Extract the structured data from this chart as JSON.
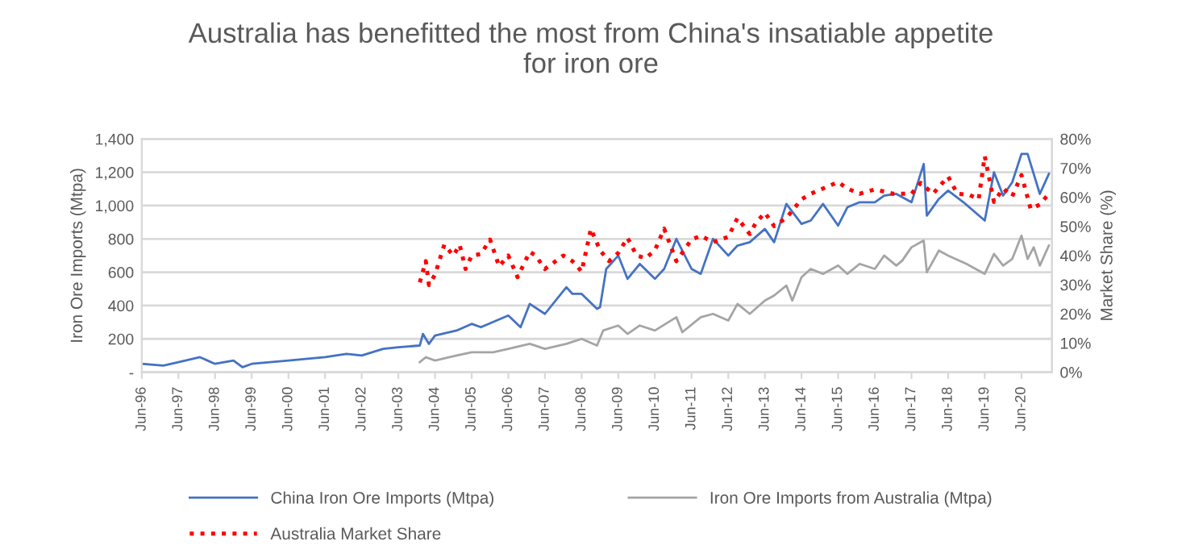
{
  "chart_data": {
    "type": "line",
    "title": "Australia has benefitted the most from China's insatiable appetite\nfor iron ore",
    "ylabel": "Iron Ore Imports (Mtpa)",
    "y2label": "Market Share (%)",
    "xlim": [
      "1996-06",
      "2021-04"
    ],
    "xticks": [
      {
        "value": "1996-06",
        "label": "Jun-96"
      },
      {
        "value": "1997-06",
        "label": "Jun-97"
      },
      {
        "value": "1998-06",
        "label": "Jun-98"
      },
      {
        "value": "1999-06",
        "label": "Jun-99"
      },
      {
        "value": "2000-06",
        "label": "Jun-00"
      },
      {
        "value": "2001-06",
        "label": "Jun-01"
      },
      {
        "value": "2002-06",
        "label": "Jun-02"
      },
      {
        "value": "2003-06",
        "label": "Jun-03"
      },
      {
        "value": "2004-06",
        "label": "Jun-04"
      },
      {
        "value": "2005-06",
        "label": "Jun-05"
      },
      {
        "value": "2006-06",
        "label": "Jun-06"
      },
      {
        "value": "2007-06",
        "label": "Jun-07"
      },
      {
        "value": "2008-06",
        "label": "Jun-08"
      },
      {
        "value": "2009-06",
        "label": "Jun-09"
      },
      {
        "value": "2010-06",
        "label": "Jun-10"
      },
      {
        "value": "2011-06",
        "label": "Jun-11"
      },
      {
        "value": "2012-06",
        "label": "Jun-12"
      },
      {
        "value": "2013-06",
        "label": "Jun-13"
      },
      {
        "value": "2014-06",
        "label": "Jun-14"
      },
      {
        "value": "2015-06",
        "label": "Jun-15"
      },
      {
        "value": "2016-06",
        "label": "Jun-16"
      },
      {
        "value": "2017-06",
        "label": "Jun-17"
      },
      {
        "value": "2018-06",
        "label": "Jun-18"
      },
      {
        "value": "2019-06",
        "label": "Jun-19"
      },
      {
        "value": "2020-06",
        "label": "Jun-20"
      }
    ],
    "ylim": [
      0,
      1400
    ],
    "yticks": [
      {
        "value": 0,
        "label": "-"
      },
      200,
      400,
      600,
      800,
      {
        "value": 1000,
        "label": "1,000"
      },
      {
        "value": 1200,
        "label": "1,200"
      },
      {
        "value": 1400,
        "label": "1,400"
      }
    ],
    "y2lim": [
      0,
      80
    ],
    "y2ticks": [
      {
        "value": 0,
        "label": "0%"
      },
      {
        "value": 10,
        "label": "10%"
      },
      {
        "value": 20,
        "label": "20%"
      },
      {
        "value": 30,
        "label": "30%"
      },
      {
        "value": 40,
        "label": "40%"
      },
      {
        "value": 50,
        "label": "50%"
      },
      {
        "value": 60,
        "label": "60%"
      },
      {
        "value": 70,
        "label": "70%"
      },
      {
        "value": 80,
        "label": "80%"
      }
    ],
    "grid": "y",
    "legend": "bottom",
    "series": [
      {
        "name": "China Iron Ore Imports (Mtpa)",
        "color": "#4472c4",
        "line_style": "solid",
        "x": [
          "1996-06",
          "1997-01",
          "1997-06",
          "1998-01",
          "1998-06",
          "1998-12",
          "1999-03",
          "1999-06",
          "2000-06",
          "2001-06",
          "2002-01",
          "2002-06",
          "2003-01",
          "2003-06",
          "2004-01",
          "2004-02",
          "2004-04",
          "2004-06",
          "2005-01",
          "2005-06",
          "2005-09",
          "2006-06",
          "2006-10",
          "2007-01",
          "2007-06",
          "2008-01",
          "2008-03",
          "2008-06",
          "2008-11",
          "2008-12",
          "2009-02",
          "2009-06",
          "2009-09",
          "2010-01",
          "2010-06",
          "2010-09",
          "2011-01",
          "2011-06",
          "2011-09",
          "2012-01",
          "2012-06",
          "2012-09",
          "2013-01",
          "2013-06",
          "2013-09",
          "2014-01",
          "2014-06",
          "2014-09",
          "2015-01",
          "2015-06",
          "2015-09",
          "2016-01",
          "2016-06",
          "2016-09",
          "2017-01",
          "2017-06",
          "2017-10",
          "2017-11",
          "2018-03",
          "2018-06",
          "2018-11",
          "2019-06",
          "2019-09",
          "2019-12",
          "2020-03",
          "2020-06",
          "2020-08",
          "2020-12",
          "2021-03"
        ],
        "values": [
          50,
          40,
          60,
          90,
          50,
          70,
          30,
          50,
          70,
          90,
          110,
          100,
          140,
          150,
          160,
          230,
          170,
          220,
          250,
          290,
          270,
          340,
          270,
          410,
          350,
          510,
          470,
          470,
          380,
          390,
          620,
          700,
          560,
          650,
          560,
          620,
          800,
          620,
          590,
          800,
          700,
          760,
          780,
          860,
          780,
          1010,
          890,
          910,
          1010,
          880,
          990,
          1020,
          1020,
          1060,
          1070,
          1020,
          1250,
          940,
          1040,
          1090,
          1020,
          910,
          1200,
          1060,
          1140,
          1310,
          1310,
          1070,
          1190
        ]
      },
      {
        "name": "Iron Ore Imports from Australia (Mtpa)",
        "color": "#a5a5a5",
        "line_style": "solid",
        "x": [
          "2004-01",
          "2004-03",
          "2004-06",
          "2005-01",
          "2005-06",
          "2006-01",
          "2006-06",
          "2007-01",
          "2007-06",
          "2008-01",
          "2008-06",
          "2008-11",
          "2009-01",
          "2009-06",
          "2009-09",
          "2010-01",
          "2010-06",
          "2011-01",
          "2011-03",
          "2011-09",
          "2012-01",
          "2012-06",
          "2012-09",
          "2013-01",
          "2013-06",
          "2013-09",
          "2014-01",
          "2014-03",
          "2014-06",
          "2014-09",
          "2015-01",
          "2015-06",
          "2015-09",
          "2016-01",
          "2016-06",
          "2016-09",
          "2017-01",
          "2017-03",
          "2017-06",
          "2017-10",
          "2017-11",
          "2018-03",
          "2018-06",
          "2018-12",
          "2019-06",
          "2019-09",
          "2019-12",
          "2020-03",
          "2020-06",
          "2020-08",
          "2020-10",
          "2020-12",
          "2021-03"
        ],
        "values": [
          60,
          90,
          70,
          100,
          120,
          120,
          140,
          170,
          140,
          170,
          200,
          160,
          250,
          280,
          230,
          280,
          250,
          330,
          240,
          330,
          350,
          310,
          410,
          350,
          430,
          460,
          520,
          430,
          570,
          620,
          590,
          640,
          590,
          650,
          620,
          700,
          640,
          670,
          750,
          790,
          600,
          730,
          700,
          650,
          590,
          710,
          640,
          680,
          820,
          680,
          750,
          640,
          760
        ]
      },
      {
        "name": "Australia Market Share",
        "color": "#ff0000",
        "line_style": "dotted",
        "axis": "y2",
        "x": [
          "2004-01",
          "2004-03",
          "2004-04",
          "2004-06",
          "2004-09",
          "2004-12",
          "2005-02",
          "2005-04",
          "2005-06",
          "2005-09",
          "2005-12",
          "2006-03",
          "2006-06",
          "2006-09",
          "2007-01",
          "2007-03",
          "2007-06",
          "2007-12",
          "2008-03",
          "2008-06",
          "2008-09",
          "2008-12",
          "2009-03",
          "2009-06",
          "2009-09",
          "2009-12",
          "2010-03",
          "2010-06",
          "2010-09",
          "2011-01",
          "2011-06",
          "2011-09",
          "2012-01",
          "2012-06",
          "2012-09",
          "2013-01",
          "2013-03",
          "2013-06",
          "2013-09",
          "2014-01",
          "2014-06",
          "2014-09",
          "2015-01",
          "2015-06",
          "2015-09",
          "2016-01",
          "2016-06",
          "2016-12",
          "2017-06",
          "2017-09",
          "2018-01",
          "2018-06",
          "2018-09",
          "2019-01",
          "2019-04",
          "2019-06",
          "2019-09",
          "2019-12",
          "2020-03",
          "2020-06",
          "2020-09",
          "2020-12",
          "2021-03"
        ],
        "values": [
          30.8,
          38.1,
          29.9,
          33.5,
          43.7,
          40.0,
          43.7,
          35.4,
          40.0,
          40.5,
          45.5,
          36.3,
          40.0,
          32.6,
          41.3,
          40.0,
          35.4,
          40.0,
          38.1,
          34.5,
          49.2,
          41.8,
          38.1,
          40.9,
          46.1,
          40.0,
          39.1,
          41.8,
          49.2,
          38.1,
          45.5,
          46.8,
          44.6,
          46.4,
          52.9,
          47.4,
          51.1,
          54.7,
          50.1,
          52.9,
          59.3,
          61.2,
          63.0,
          65.2,
          63.0,
          61.2,
          62.7,
          61.2,
          61.2,
          64.9,
          61.2,
          67.1,
          61.2,
          60.8,
          59.3,
          74.1,
          58.4,
          63.0,
          60.3,
          67.6,
          56.0,
          57.5,
          61.2
        ]
      }
    ]
  }
}
